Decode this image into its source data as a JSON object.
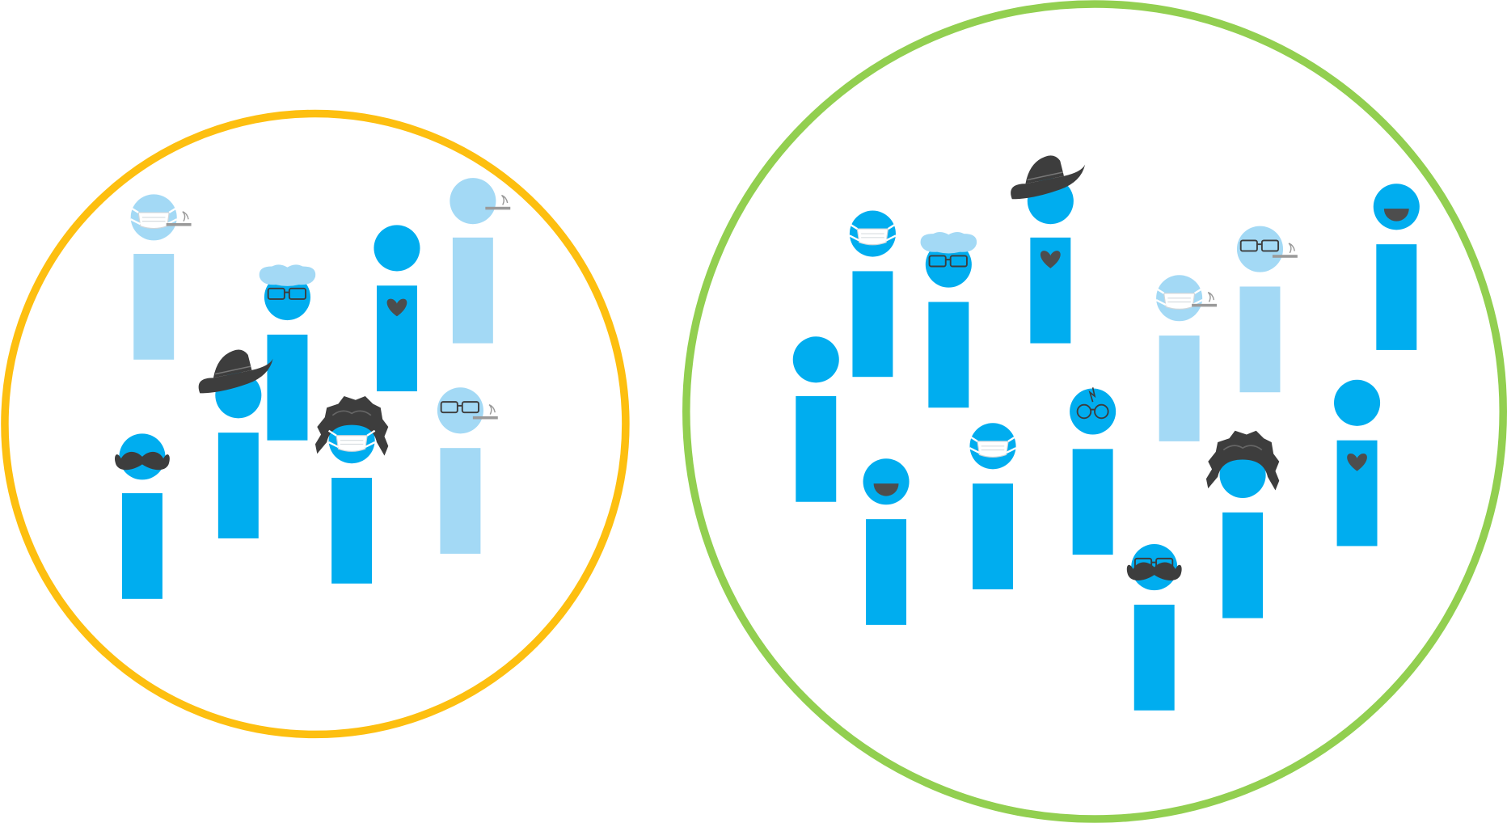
{
  "colors": {
    "background": "#ffffff",
    "primary": "#00adef",
    "faded": "#a3d9f5",
    "accessory": "#3d3d3d",
    "mask": "#ffffff",
    "cigarette": "#9a9a9a",
    "orange_ring": "#fdbf10",
    "green_ring": "#92cf50"
  },
  "groups": [
    {
      "name": "small-group",
      "ring_color": "orange",
      "people": [
        {
          "shade": "faded",
          "accessories": [
            "mask-icon",
            "cigarette-icon"
          ]
        },
        {
          "shade": "faded",
          "accessories": [
            "cigarette-icon"
          ]
        },
        {
          "shade": "primary",
          "accessories": [
            "heart-icon"
          ]
        },
        {
          "shade": "primary",
          "accessories": [
            "cap-icon",
            "glasses-icon"
          ]
        },
        {
          "shade": "primary",
          "accessories": [
            "fedora-icon"
          ]
        },
        {
          "shade": "primary",
          "accessories": [
            "shaggy-hair-icon",
            "mask-icon"
          ]
        },
        {
          "shade": "faded",
          "accessories": [
            "glasses-icon",
            "cigarette-icon"
          ]
        },
        {
          "shade": "primary",
          "accessories": [
            "mustache-icon"
          ]
        }
      ]
    },
    {
      "name": "large-group",
      "ring_color": "green",
      "people": [
        {
          "shade": "primary",
          "accessories": [
            "mask-icon"
          ]
        },
        {
          "shade": "primary",
          "accessories": [
            "cap-icon",
            "glasses-icon"
          ]
        },
        {
          "shade": "primary",
          "accessories": [
            "fedora-icon",
            "heart-icon"
          ]
        },
        {
          "shade": "faded",
          "accessories": [
            "glasses-icon",
            "cigarette-icon"
          ]
        },
        {
          "shade": "primary",
          "accessories": [
            "smile-icon"
          ]
        },
        {
          "shade": "faded",
          "accessories": [
            "mask-icon",
            "cigarette-icon"
          ]
        },
        {
          "shade": "primary",
          "accessories": []
        },
        {
          "shade": "primary",
          "accessories": [
            "smile-icon"
          ]
        },
        {
          "shade": "primary",
          "accessories": [
            "mask-icon"
          ]
        },
        {
          "shade": "primary",
          "accessories": [
            "round-glasses-icon"
          ]
        },
        {
          "shade": "primary",
          "accessories": [
            "heart-icon"
          ]
        },
        {
          "shade": "primary",
          "accessories": [
            "shaggy-hair-icon"
          ]
        },
        {
          "shade": "primary",
          "accessories": [
            "glasses-icon",
            "mustache-icon"
          ]
        }
      ]
    }
  ]
}
